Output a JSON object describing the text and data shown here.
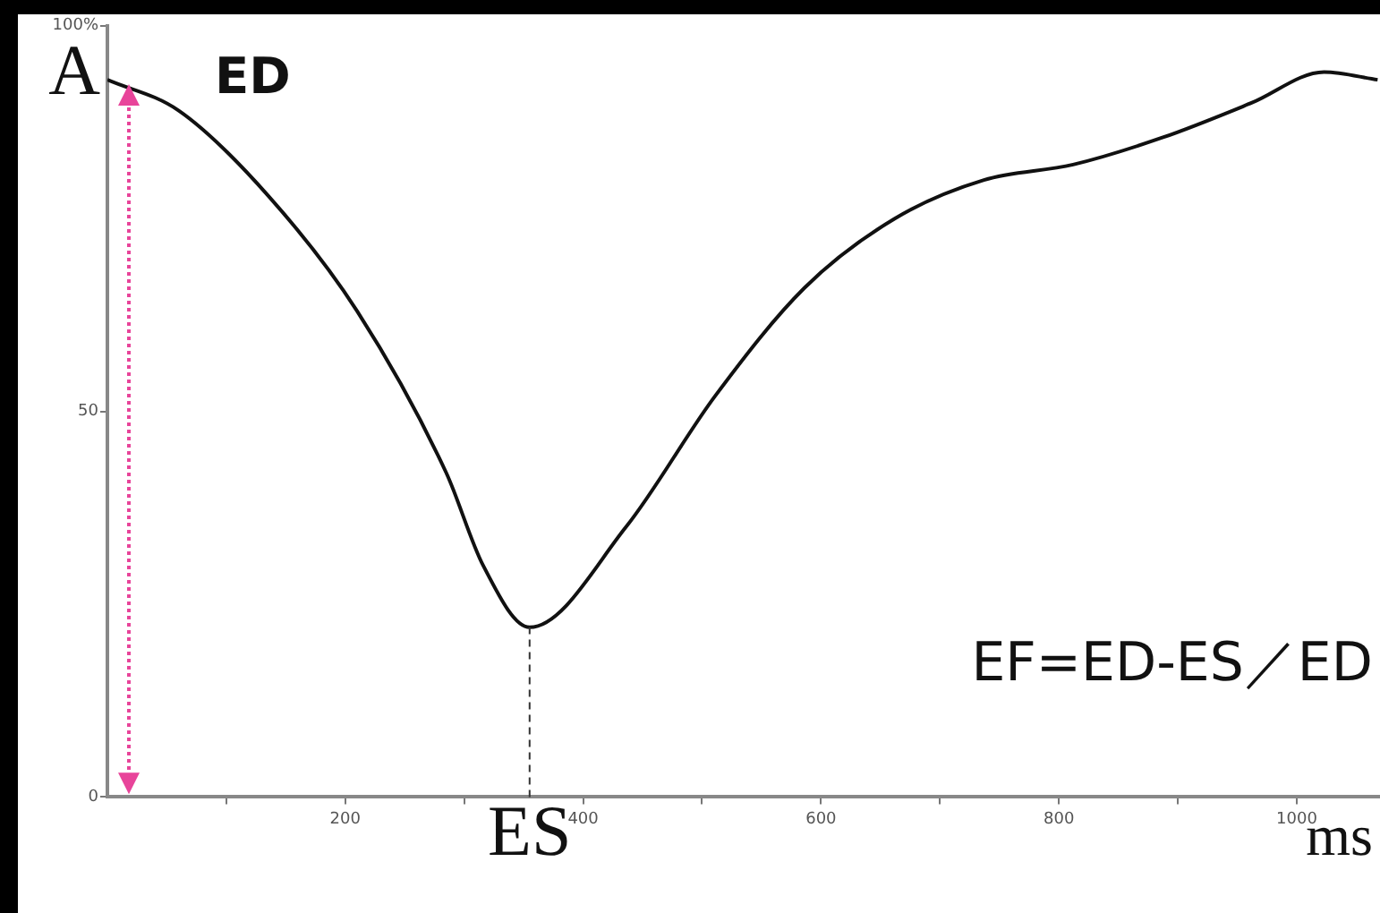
{
  "chart_data": {
    "type": "line",
    "xlabel": "ms",
    "ylabel": "A",
    "x": [
      0,
      60,
      135,
      210,
      285,
      316,
      355,
      436,
      511,
      586,
      662,
      737,
      812,
      887,
      962,
      1023,
      1068
    ],
    "values": [
      93,
      89,
      78,
      63,
      42,
      30,
      22,
      35,
      52,
      66,
      75,
      80,
      82,
      85.5,
      90,
      94,
      93
    ],
    "color": "#111111",
    "marker": "none",
    "line_style": "solid",
    "grid": false,
    "legend": false,
    "xlim": [
      0,
      1070
    ],
    "ylim": [
      0,
      100
    ],
    "xticks": [
      {
        "value": 100,
        "label": null
      },
      200,
      {
        "value": 300,
        "label": null
      },
      400,
      {
        "value": 500,
        "label": null
      },
      600,
      {
        "value": 700,
        "label": null
      },
      800,
      {
        "value": 900,
        "label": null
      },
      1000
    ],
    "yticks": [
      0,
      50,
      {
        "value": 100,
        "label": "100%"
      }
    ],
    "ref_lines": [
      {
        "axis": "x",
        "value": 355,
        "label": "ES",
        "color": "#333333",
        "line_style": "dashed"
      }
    ],
    "annotations": [
      {
        "text": "ED",
        "x": 0,
        "y": 93
      },
      "EF=ED-ES／ED"
    ]
  }
}
